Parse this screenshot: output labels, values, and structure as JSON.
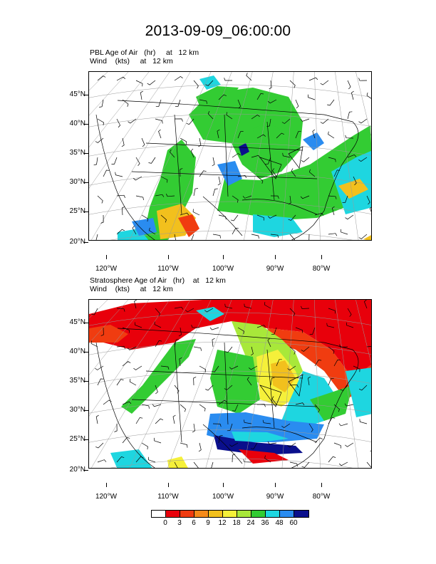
{
  "title": "2013-09-09_06:00:00",
  "panels": [
    {
      "line1": "PBL Age of Air   (hr)     at   12 km",
      "line2": "Wind    (kts)     at   12 km"
    },
    {
      "line1": "Stratosphere Age of Air   (hr)    at   12 km",
      "line2": "Wind    (kts)     at   12 km"
    }
  ],
  "lat_labels": [
    "45°N",
    "40°N",
    "35°N",
    "30°N",
    "25°N",
    "20°N"
  ],
  "lon_labels": [
    "120°W",
    "110°W",
    "100°W",
    "90°W",
    "80°W"
  ],
  "colorbar": {
    "colors": [
      "#ffffff",
      "#e8000b",
      "#f03c10",
      "#f58a1a",
      "#f2c01d",
      "#f5f03a",
      "#a8e83a",
      "#33cc33",
      "#1ed6e0",
      "#2a8cf0",
      "#0a0f8c"
    ],
    "labels": [
      "0",
      "3",
      "6",
      "9",
      "12",
      "18",
      "24",
      "36",
      "48",
      "60"
    ]
  }
}
